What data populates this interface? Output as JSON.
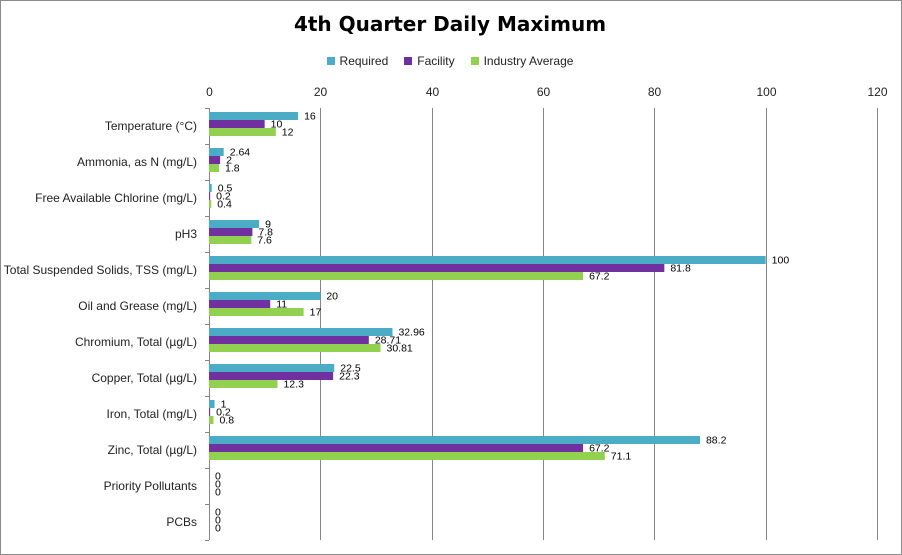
{
  "chart_data": {
    "type": "bar",
    "orientation": "horizontal",
    "title": "4th Quarter Daily Maximum",
    "xlim": [
      0,
      120
    ],
    "x_ticks": [
      "0",
      "20",
      "40",
      "60",
      "80",
      "100",
      "120"
    ],
    "grid": true,
    "legend_position": "top",
    "categories": [
      "Temperature (°C)",
      "Ammonia, as N (mg/L)",
      "Free Available Chlorine (mg/L)",
      "pH3",
      "Total Suspended Solids, TSS (mg/L)",
      "Oil and Grease (mg/L)",
      "Chromium, Total (µg/L)",
      "Copper, Total (µg/L)",
      "Iron, Total (mg/L)",
      "Zinc, Total (µg/L)",
      "Priority Pollutants",
      "PCBs"
    ],
    "series": [
      {
        "name": "Required",
        "color": "#4bacc6",
        "values": [
          16,
          2.64,
          0.5,
          9,
          100,
          20,
          32.96,
          22.5,
          1,
          88.2,
          0,
          0
        ],
        "labels": [
          "16",
          "2.64",
          "0.5",
          "9",
          "100",
          "20",
          "32.96",
          "22.5",
          "1",
          "88.2",
          "0",
          "0"
        ]
      },
      {
        "name": "Facility",
        "color": "#7030a0",
        "values": [
          10,
          2,
          0.2,
          7.8,
          81.8,
          11,
          28.71,
          22.3,
          0.2,
          67.2,
          0,
          0
        ],
        "labels": [
          "10",
          "2",
          "0.2",
          "7.8",
          "81.8",
          "11",
          "28.71",
          "22.3",
          "0.2",
          "67.2",
          "0",
          "0"
        ]
      },
      {
        "name": "Industry Average",
        "color": "#92d050",
        "values": [
          12,
          1.8,
          0.4,
          7.6,
          67.2,
          17,
          30.81,
          12.3,
          0.8,
          71.1,
          0,
          0
        ],
        "labels": [
          "12",
          "1.8",
          "0.4",
          "7.6",
          "67.2",
          "17",
          "30.81",
          "12.3",
          "0.8",
          "71.1",
          "0",
          "0"
        ]
      }
    ]
  }
}
